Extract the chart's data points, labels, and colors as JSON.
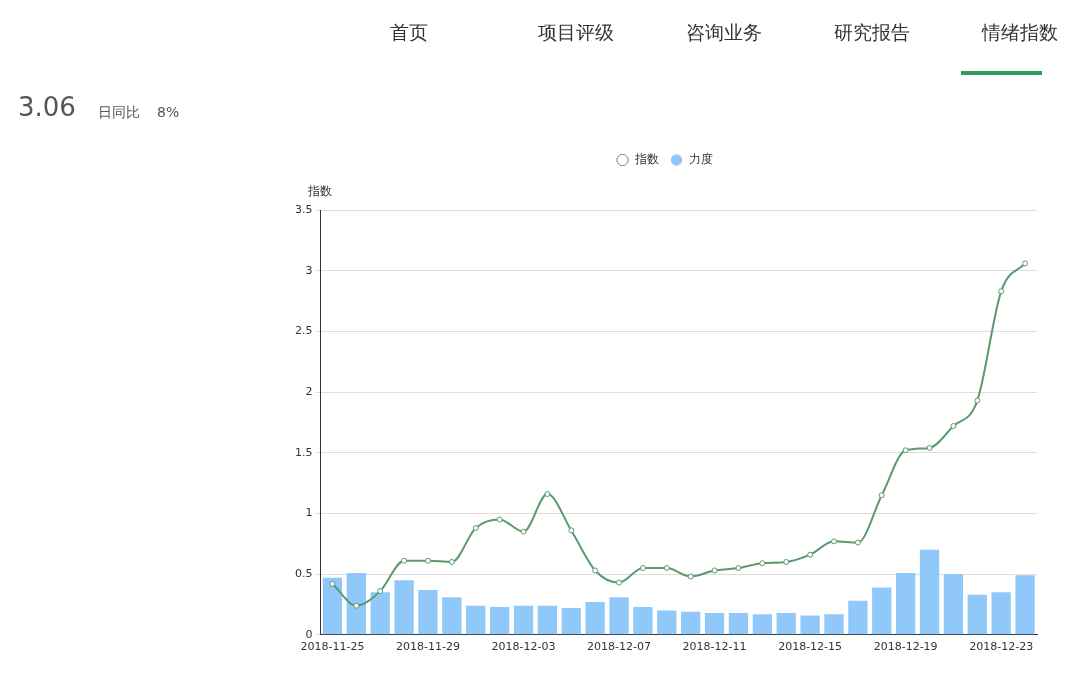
{
  "chart_data": {
    "type": "bar",
    "ylabel": "指数",
    "legend": "top",
    "annotations": [
      "首页",
      "项目评级",
      "咨询业务",
      "研究报告",
      "情绪指数",
      "3.06",
      "日同比",
      "8%"
    ],
    "categories": [
      "2018-11-25",
      null,
      null,
      null,
      "2018-11-29",
      null,
      null,
      null,
      "2018-12-03",
      null,
      null,
      null,
      "2018-12-07",
      null,
      null,
      null,
      "2018-12-11",
      null,
      null,
      null,
      "2018-12-15",
      null,
      null,
      null,
      "2018-12-19",
      null,
      null,
      null,
      "2018-12-23",
      null
    ],
    "series": [
      {
        "name": "指数",
        "type": "line",
        "color": "#5a9a6e",
        "marker": "circle",
        "values": [
          0.42,
          0.24,
          0.36,
          0.61,
          0.61,
          0.6,
          0.88,
          0.95,
          0.85,
          1.16,
          0.86,
          0.53,
          0.43,
          0.55,
          0.55,
          0.48,
          0.53,
          0.55,
          0.59,
          0.6,
          0.66,
          0.77,
          0.76,
          1.15,
          1.52,
          1.54,
          1.72,
          1.93,
          2.83,
          3.06
        ]
      },
      {
        "name": "力度",
        "color": "#90c8fa",
        "values": [
          0.47,
          0.51,
          0.35,
          0.45,
          0.37,
          0.31,
          0.24,
          0.23,
          0.24,
          0.24,
          0.22,
          0.27,
          0.31,
          0.23,
          0.2,
          0.19,
          0.18,
          0.18,
          0.17,
          0.18,
          0.16,
          0.17,
          0.28,
          0.39,
          0.51,
          0.7,
          0.5,
          0.33,
          0.35,
          0.49
        ]
      }
    ],
    "ylim": [
      0,
      3.5
    ],
    "yticks": [
      0,
      0.5,
      1,
      1.5,
      2,
      2.5,
      3,
      3.5
    ],
    "grid": "y"
  }
}
